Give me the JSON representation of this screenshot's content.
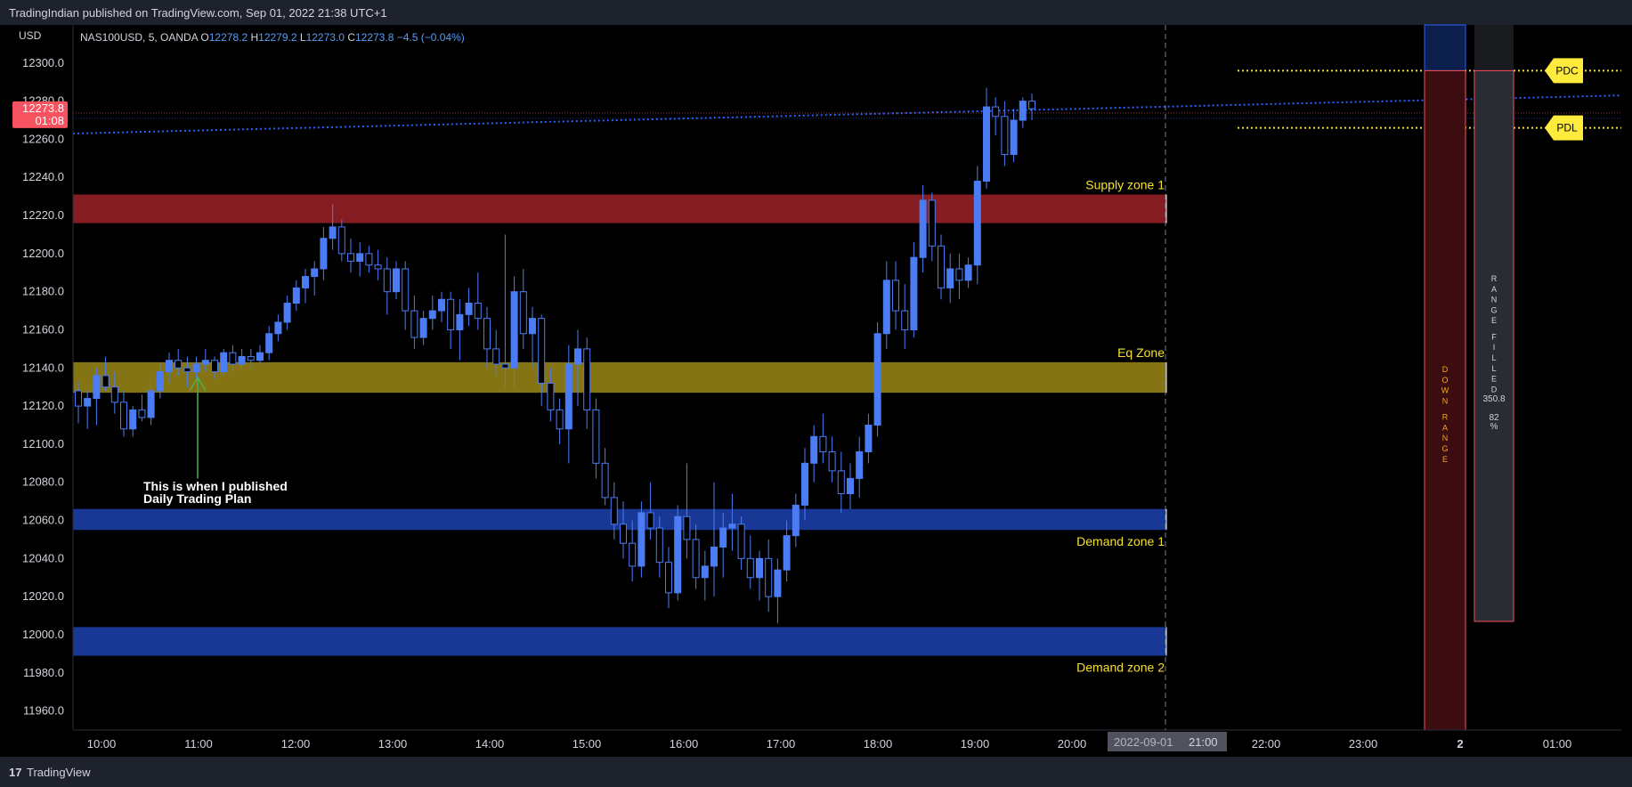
{
  "header": {
    "published": "TradingIndian published on TradingView.com, Sep 01, 2022 21:38 UTC+1"
  },
  "footer": {
    "brand": "TradingView",
    "brand_icon": "tradingview-logo-icon"
  },
  "axis": {
    "currency": "USD",
    "date_marker": "2022-09-01",
    "time_marker": "21:00"
  },
  "legend": {
    "symbol": "NAS100USD, 5, OANDA",
    "o_label": "O",
    "o": "12278.2",
    "h_label": "H",
    "h": "12279.2",
    "l_label": "L",
    "l": "12273.0",
    "c_label": "C",
    "c": "12273.8",
    "change": "−4.5 (−0.04%)"
  },
  "price_tag": {
    "price": "12273.8",
    "countdown": "01:08"
  },
  "annotation": {
    "line1": "This is when I published",
    "line2": "Daily Trading Plan"
  },
  "colors": {
    "up": "#4c7cf3",
    "down": "#2962ff",
    "supply": "#8b1e24",
    "eq": "#8c7a14",
    "demand": "#1a3a9c",
    "pd_line": "#f5e030",
    "marker": "#ffeb3b",
    "arrow": "#4caf50",
    "tag": "#f7525f"
  },
  "chart_data": {
    "type": "candlestick",
    "title": "",
    "ylim": [
      11950,
      12320
    ],
    "y_ticks": [
      "12300.0",
      "12280.0",
      "12260.0",
      "12240.0",
      "12220.0",
      "12200.0",
      "12180.0",
      "12160.0",
      "12140.0",
      "12120.0",
      "12100.0",
      "12080.0",
      "12060.0",
      "12040.0",
      "12020.0",
      "12000.0",
      "11980.0",
      "11960.0"
    ],
    "x_ticks": [
      "10:00",
      "11:00",
      "12:00",
      "13:00",
      "14:00",
      "15:00",
      "16:00",
      "17:00",
      "18:00",
      "19:00",
      "20:00",
      "21:00",
      "22:00",
      "23:00",
      "2",
      "01:00"
    ],
    "zones": [
      {
        "label": "Supply zone 1",
        "from": 12216,
        "to": 12231,
        "color": "supply"
      },
      {
        "label": "Eq Zone",
        "from": 12127,
        "to": 12143,
        "color": "eq"
      },
      {
        "label": "Demand zone 1",
        "from": 12055,
        "to": 12066,
        "color": "demand"
      },
      {
        "label": "Demand zone 2",
        "from": 11989,
        "to": 12004,
        "color": "demand"
      }
    ],
    "levels": [
      {
        "label": "PDC",
        "price": 12296
      },
      {
        "label": "PDL",
        "price": 12266
      }
    ],
    "boxes": [
      {
        "label": "D O W N   R A N G E",
        "from": 11950,
        "to": 12296
      },
      {
        "label": "R A N G E   F I L L E D",
        "value": "350.8",
        "pct": "82",
        "pct_unit": "%",
        "from": 12007,
        "to": 12296
      }
    ],
    "candles": [
      [
        12128,
        12133,
        12111,
        12120
      ],
      [
        12120,
        12128,
        12108,
        12124
      ],
      [
        12124,
        12140,
        12110,
        12136
      ],
      [
        12136,
        12146,
        12128,
        12130
      ],
      [
        12130,
        12138,
        12116,
        12122
      ],
      [
        12122,
        12128,
        12104,
        12108
      ],
      [
        12108,
        12120,
        12104,
        12118
      ],
      [
        12118,
        12126,
        12112,
        12114
      ],
      [
        12114,
        12132,
        12110,
        12128
      ],
      [
        12128,
        12142,
        12124,
        12138
      ],
      [
        12138,
        12148,
        12132,
        12144
      ],
      [
        12144,
        12150,
        12136,
        12140
      ],
      [
        12140,
        12146,
        12130,
        12138
      ],
      [
        12138,
        12146,
        12134,
        12142
      ],
      [
        12142,
        12150,
        12138,
        12144
      ],
      [
        12144,
        12146,
        12134,
        12138
      ],
      [
        12138,
        12150,
        12136,
        12148
      ],
      [
        12148,
        12152,
        12138,
        12142
      ],
      [
        12142,
        12150,
        12140,
        12146
      ],
      [
        12146,
        12150,
        12140,
        12144
      ],
      [
        12144,
        12152,
        12142,
        12148
      ],
      [
        12148,
        12162,
        12144,
        12158
      ],
      [
        12158,
        12168,
        12154,
        12164
      ],
      [
        12164,
        12178,
        12160,
        12174
      ],
      [
        12174,
        12186,
        12170,
        12182
      ],
      [
        12182,
        12192,
        12174,
        12188
      ],
      [
        12188,
        12196,
        12178,
        12192
      ],
      [
        12192,
        12214,
        12186,
        12208
      ],
      [
        12208,
        12226,
        12202,
        12214
      ],
      [
        12214,
        12218,
        12196,
        12200
      ],
      [
        12200,
        12208,
        12190,
        12196
      ],
      [
        12196,
        12206,
        12188,
        12200
      ],
      [
        12200,
        12204,
        12190,
        12194
      ],
      [
        12194,
        12202,
        12186,
        12192
      ],
      [
        12192,
        12198,
        12168,
        12180
      ],
      [
        12180,
        12196,
        12176,
        12192
      ],
      [
        12192,
        12196,
        12160,
        12170
      ],
      [
        12170,
        12178,
        12150,
        12156
      ],
      [
        12156,
        12170,
        12152,
        12166
      ],
      [
        12166,
        12178,
        12160,
        12170
      ],
      [
        12170,
        12180,
        12164,
        12176
      ],
      [
        12176,
        12180,
        12150,
        12160
      ],
      [
        12160,
        12176,
        12144,
        12168
      ],
      [
        12168,
        12182,
        12162,
        12174
      ],
      [
        12174,
        12190,
        12160,
        12166
      ],
      [
        12166,
        12172,
        12140,
        12150
      ],
      [
        12150,
        12160,
        12136,
        12142
      ],
      [
        12142,
        12210,
        12130,
        12140
      ],
      [
        12140,
        12188,
        12130,
        12180
      ],
      [
        12180,
        12192,
        12150,
        12158
      ],
      [
        12158,
        12172,
        12140,
        12166
      ],
      [
        12166,
        12168,
        12120,
        12132
      ],
      [
        12132,
        12140,
        12112,
        12118
      ],
      [
        12118,
        12124,
        12100,
        12108
      ],
      [
        12108,
        12152,
        12090,
        12142
      ],
      [
        12142,
        12160,
        12120,
        12150
      ],
      [
        12150,
        12156,
        12108,
        12118
      ],
      [
        12118,
        12124,
        12082,
        12090
      ],
      [
        12090,
        12098,
        12068,
        12072
      ],
      [
        12072,
        12080,
        12050,
        12058
      ],
      [
        12058,
        12070,
        12040,
        12048
      ],
      [
        12048,
        12060,
        12028,
        12036
      ],
      [
        12036,
        12070,
        12030,
        12064
      ],
      [
        12064,
        12080,
        12050,
        12056
      ],
      [
        12056,
        12062,
        12030,
        12038
      ],
      [
        12038,
        12046,
        12014,
        12022
      ],
      [
        12022,
        12068,
        12018,
        12062
      ],
      [
        12062,
        12090,
        12040,
        12050
      ],
      [
        12050,
        12058,
        12024,
        12030
      ],
      [
        12030,
        12044,
        12018,
        12036
      ],
      [
        12036,
        12080,
        12020,
        12046
      ],
      [
        12046,
        12064,
        12030,
        12056
      ],
      [
        12056,
        12074,
        12044,
        12058
      ],
      [
        12058,
        12062,
        12034,
        12040
      ],
      [
        12040,
        12052,
        12024,
        12030
      ],
      [
        12030,
        12044,
        12018,
        12040
      ],
      [
        12040,
        12050,
        12012,
        12020
      ],
      [
        12020,
        12040,
        12006,
        12034
      ],
      [
        12034,
        12060,
        12028,
        12052
      ],
      [
        12052,
        12074,
        12046,
        12068
      ],
      [
        12068,
        12098,
        12060,
        12090
      ],
      [
        12090,
        12110,
        12080,
        12104
      ],
      [
        12104,
        12116,
        12090,
        12096
      ],
      [
        12096,
        12104,
        12080,
        12086
      ],
      [
        12086,
        12096,
        12064,
        12074
      ],
      [
        12074,
        12090,
        12066,
        12082
      ],
      [
        12082,
        12104,
        12072,
        12096
      ],
      [
        12096,
        12116,
        12090,
        12110
      ],
      [
        12110,
        12164,
        12104,
        12158
      ],
      [
        12158,
        12196,
        12150,
        12186
      ],
      [
        12186,
        12196,
        12160,
        12170
      ],
      [
        12170,
        12184,
        12150,
        12160
      ],
      [
        12160,
        12206,
        12156,
        12198
      ],
      [
        12198,
        12236,
        12190,
        12228
      ],
      [
        12228,
        12232,
        12196,
        12204
      ],
      [
        12204,
        12210,
        12176,
        12182
      ],
      [
        12182,
        12200,
        12174,
        12192
      ],
      [
        12192,
        12200,
        12176,
        12186
      ],
      [
        12186,
        12198,
        12182,
        12194
      ],
      [
        12194,
        12246,
        12184,
        12238
      ],
      [
        12238,
        12287,
        12234,
        12277
      ],
      [
        12277,
        12282,
        12262,
        12272
      ],
      [
        12272,
        12280,
        12246,
        12252
      ],
      [
        12252,
        12276,
        12248,
        12270
      ],
      [
        12270,
        12282,
        12266,
        12280
      ],
      [
        12280,
        12284,
        12270,
        12276
      ]
    ]
  }
}
